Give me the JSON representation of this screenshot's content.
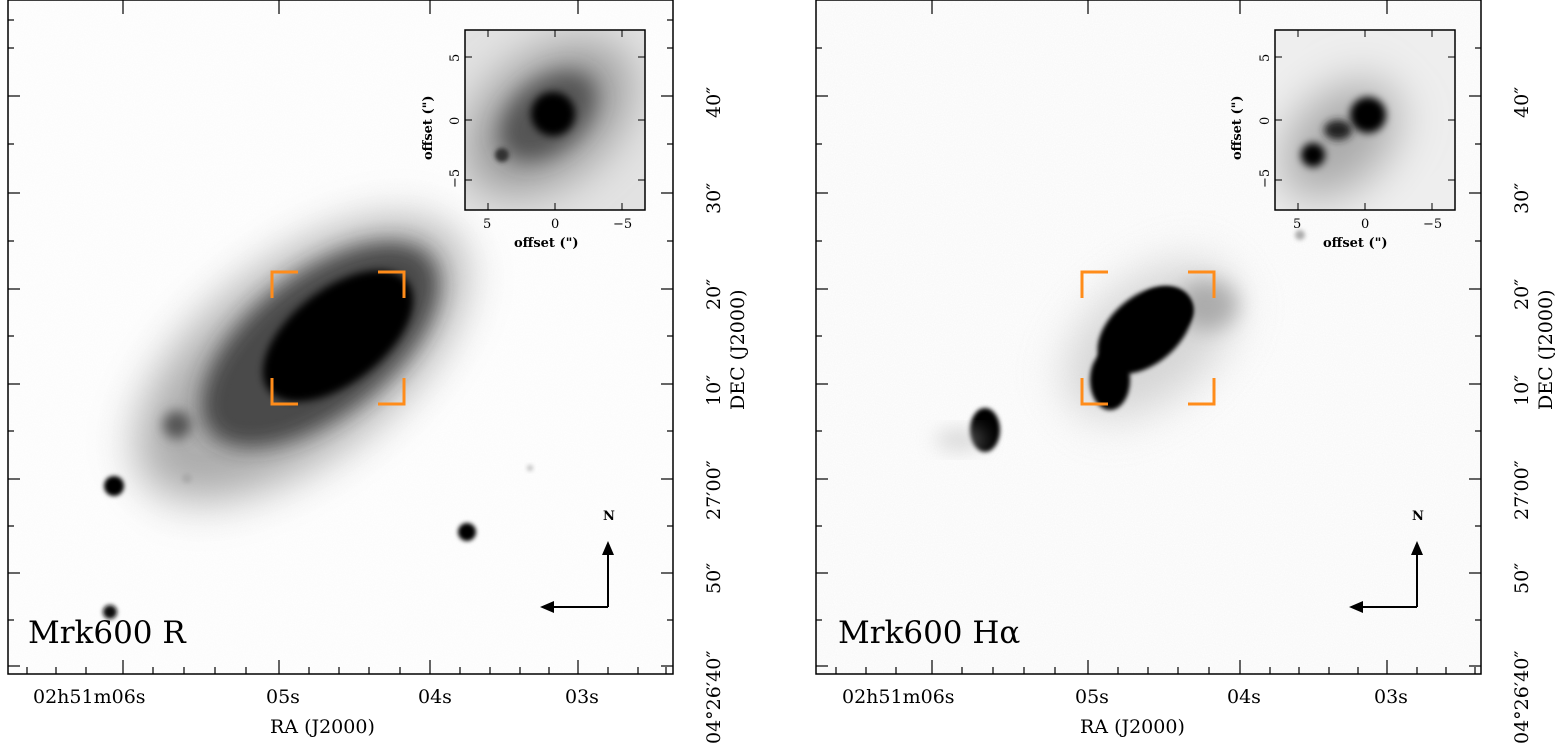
{
  "panels": [
    {
      "id": "r-band",
      "label": "Mrk600  R",
      "xaxis": {
        "title": "RA (J2000)",
        "ticks": [
          "02h51m06s",
          "05s",
          "04s",
          "03s"
        ]
      },
      "yaxis": {
        "title": "DEC (J2000)",
        "ticks": [
          "04°26′40″",
          "50″",
          "27′00″",
          "10″",
          "20″",
          "30″",
          "40″"
        ]
      },
      "inset": {
        "xlabel": "offset (\")",
        "ylabel": "offset (\")",
        "xticks": [
          "5",
          "0",
          "−5"
        ],
        "yticks": [
          "5",
          "0",
          "−5"
        ]
      },
      "compass": {
        "north": "N"
      }
    },
    {
      "id": "halpha",
      "label": "Mrk600  Hα",
      "xaxis": {
        "title": "RA (J2000)",
        "ticks": [
          "02h51m06s",
          "05s",
          "04s",
          "03s"
        ]
      },
      "yaxis": {
        "title": "DEC (J2000)",
        "ticks": [
          "04°26′40″",
          "50″",
          "27′00″",
          "10″",
          "20″",
          "30″",
          "40″"
        ]
      },
      "inset": {
        "xlabel": "offset (\")",
        "ylabel": "offset (\")",
        "xticks": [
          "5",
          "0",
          "−5"
        ],
        "yticks": [
          "5",
          "0",
          "−5"
        ]
      },
      "compass": {
        "north": "N"
      }
    }
  ],
  "colors": {
    "bracket": "#ff8c1a",
    "frame": "#000000"
  }
}
